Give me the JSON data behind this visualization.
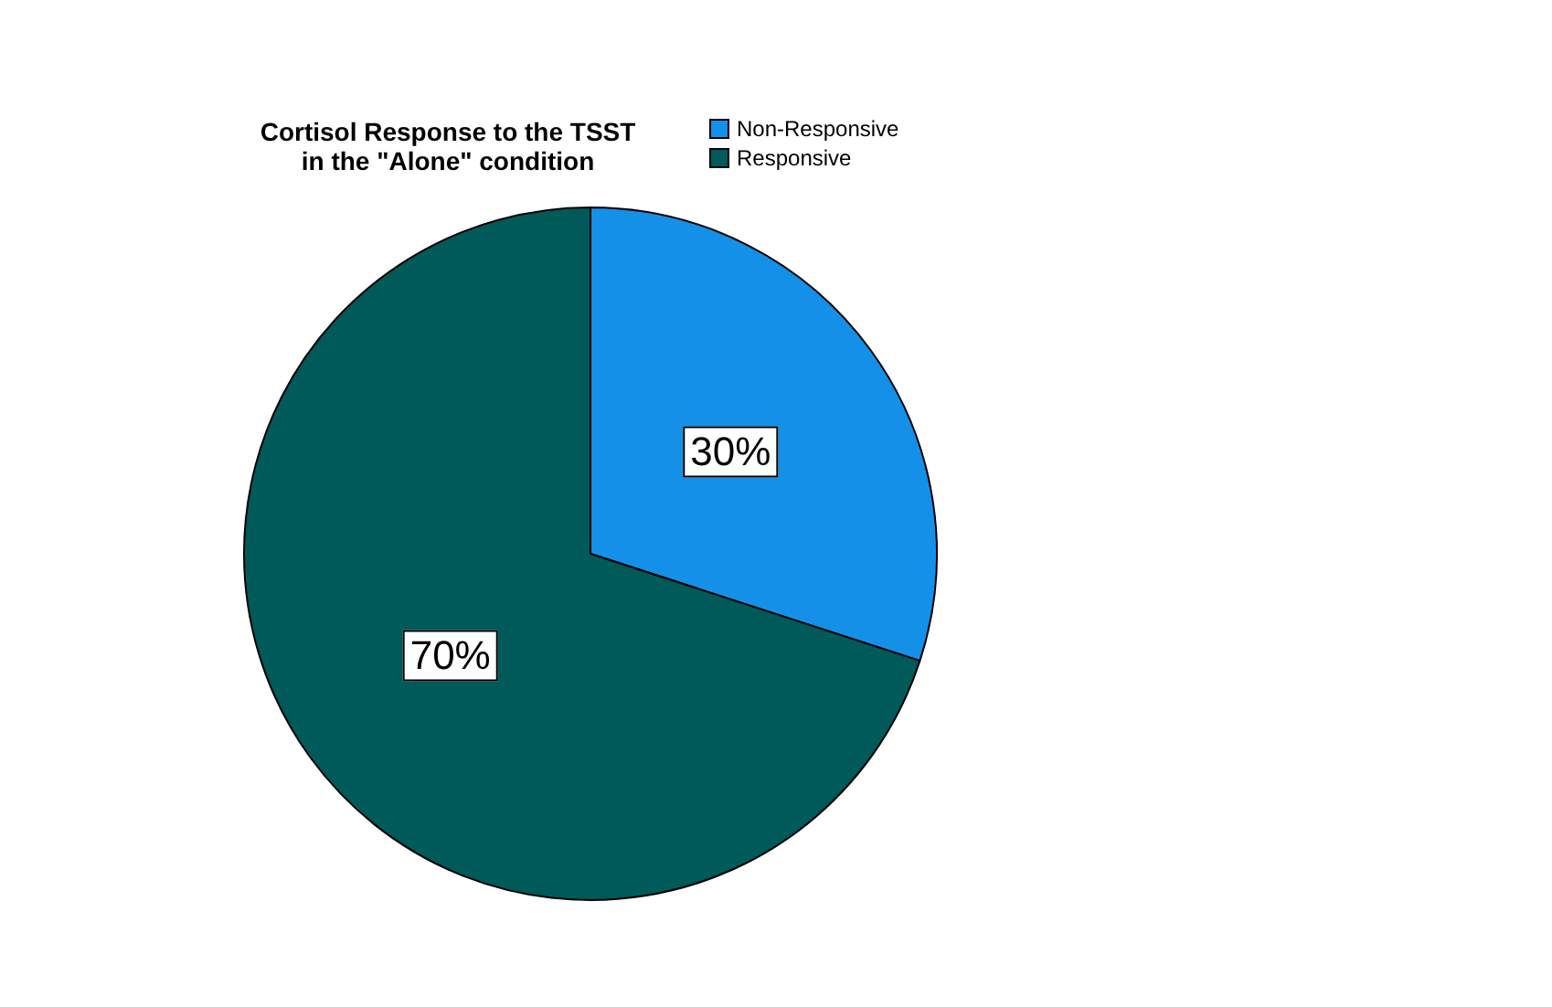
{
  "chart_data": {
    "type": "pie",
    "title": "Cortisol Response to the TSST\nin the \"Alone\" condition",
    "categories": [
      "Non-Responsive",
      "Responsive"
    ],
    "values": [
      30,
      70
    ],
    "colors": [
      "#1590e8",
      "#005a5a"
    ],
    "value_labels": [
      "30%",
      "70%"
    ],
    "legend": "top right"
  }
}
